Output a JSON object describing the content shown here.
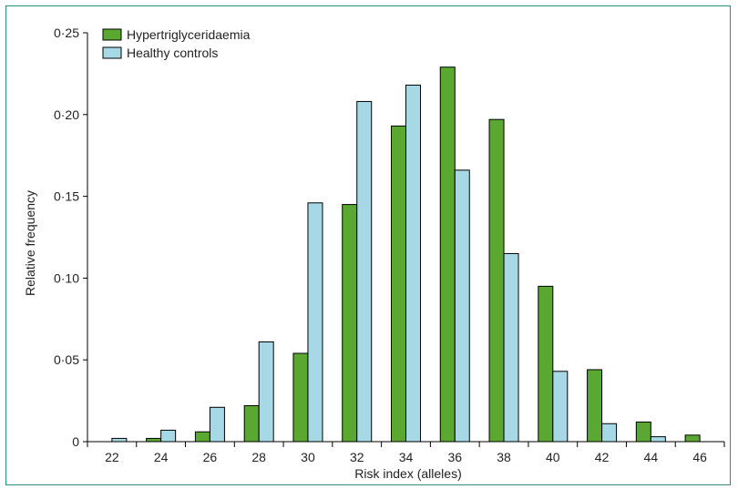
{
  "chart_data": {
    "type": "bar",
    "title": "",
    "xlabel": "Risk index (alleles)",
    "ylabel": "Relative frequency",
    "ylim": [
      0,
      0.25
    ],
    "yticks": [
      "0",
      "0·05",
      "0·10",
      "0·15",
      "0·20",
      "0·25"
    ],
    "ytick_values": [
      0,
      0.05,
      0.1,
      0.15,
      0.2,
      0.25
    ],
    "categories": [
      "22",
      "24",
      "26",
      "28",
      "30",
      "32",
      "34",
      "36",
      "38",
      "40",
      "42",
      "44",
      "46"
    ],
    "series": [
      {
        "name": "Hypertriglyceridaemia",
        "color": "#5aa832",
        "values": [
          0,
          0.002,
          0.006,
          0.022,
          0.054,
          0.145,
          0.193,
          0.229,
          0.197,
          0.095,
          0.044,
          0.012,
          0.004
        ]
      },
      {
        "name": "Healthy controls",
        "color": "#a6d8e6",
        "values": [
          0.002,
          0.007,
          0.021,
          0.061,
          0.146,
          0.208,
          0.218,
          0.166,
          0.115,
          0.043,
          0.011,
          0.003,
          0
        ]
      }
    ],
    "legend": "top-left",
    "grid": false
  }
}
